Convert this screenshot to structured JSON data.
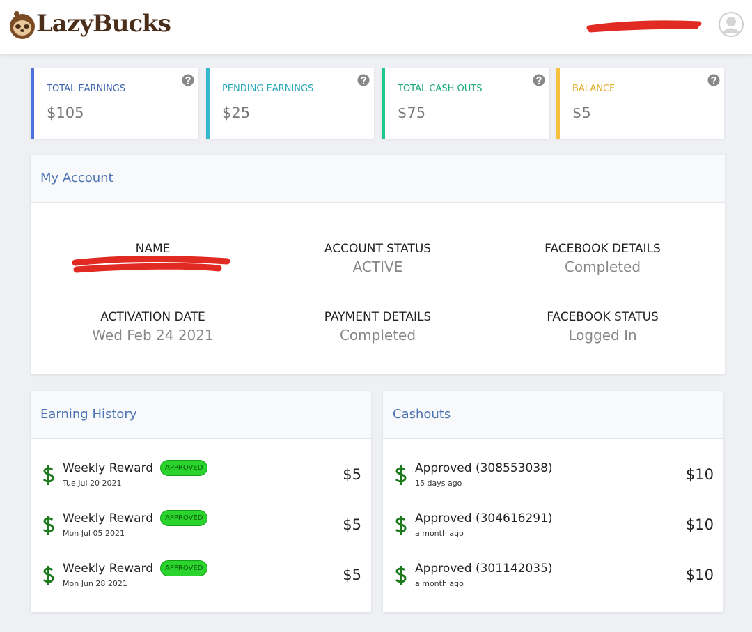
{
  "header": {
    "logo": "LazyBucks"
  },
  "stats": [
    {
      "label": "TOTAL EARNINGS",
      "value": "$105"
    },
    {
      "label": "PENDING EARNINGS",
      "value": "$25"
    },
    {
      "label": "TOTAL CASH OUTS",
      "value": "$75"
    },
    {
      "label": "BALANCE",
      "value": "$5"
    }
  ],
  "account": {
    "title": "My Account",
    "fields": [
      {
        "label": "NAME"
      },
      {
        "label": "ACCOUNT STATUS",
        "value": "ACTIVE"
      },
      {
        "label": "FACEBOOK DETAILS",
        "value": "Completed"
      },
      {
        "label": "ACTIVATION DATE",
        "value": "Wed Feb 24 2021"
      },
      {
        "label": "PAYMENT DETAILS",
        "value": "Completed"
      },
      {
        "label": "FACEBOOK STATUS",
        "value": "Logged In"
      }
    ]
  },
  "earning_history": {
    "title": "Earning History",
    "items": [
      {
        "title": "Weekly Reward",
        "badge": "APPROVED",
        "date": "Tue Jul 20 2021",
        "amount": "$5"
      },
      {
        "title": "Weekly Reward",
        "badge": "APPROVED",
        "date": "Mon Jul 05 2021",
        "amount": "$5"
      },
      {
        "title": "Weekly Reward",
        "badge": "APPROVED",
        "date": "Mon Jun 28 2021",
        "amount": "$5"
      }
    ]
  },
  "cashouts": {
    "title": "Cashouts",
    "items": [
      {
        "title": "Approved (308553038)",
        "date": "15 days ago",
        "amount": "$10"
      },
      {
        "title": "Approved (304616291)",
        "date": "a month ago",
        "amount": "$10"
      },
      {
        "title": "Approved (301142035)",
        "date": "a month ago",
        "amount": "$10"
      }
    ]
  }
}
